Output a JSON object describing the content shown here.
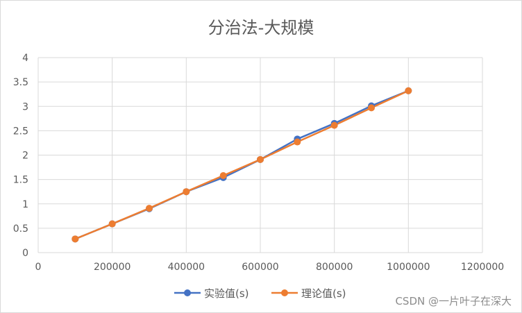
{
  "chart_data": {
    "type": "line",
    "title": "分治法-大规模",
    "xlabel": "",
    "ylabel": "",
    "xlim": [
      0,
      1200000
    ],
    "ylim": [
      0,
      4
    ],
    "x_ticks": [
      "0",
      "200000",
      "400000",
      "600000",
      "800000",
      "1000000",
      "1200000"
    ],
    "y_ticks": [
      "0",
      "0.5",
      "1",
      "1.5",
      "2",
      "2.5",
      "3",
      "3.5",
      "4"
    ],
    "grid": true,
    "legend_position": "bottom",
    "x": [
      100000,
      200000,
      300000,
      400000,
      500000,
      600000,
      700000,
      800000,
      900000,
      1000000
    ],
    "series": [
      {
        "name": "实验值(s)",
        "color": "#4472c4",
        "values": [
          0.28,
          0.59,
          0.9,
          1.25,
          1.54,
          1.91,
          2.33,
          2.65,
          3.01,
          3.32
        ]
      },
      {
        "name": "理论值(s)",
        "color": "#ed7d31",
        "values": [
          0.28,
          0.59,
          0.91,
          1.25,
          1.58,
          1.91,
          2.27,
          2.61,
          2.97,
          3.32
        ]
      }
    ]
  },
  "watermark": "CSDN @一片叶子在深大"
}
